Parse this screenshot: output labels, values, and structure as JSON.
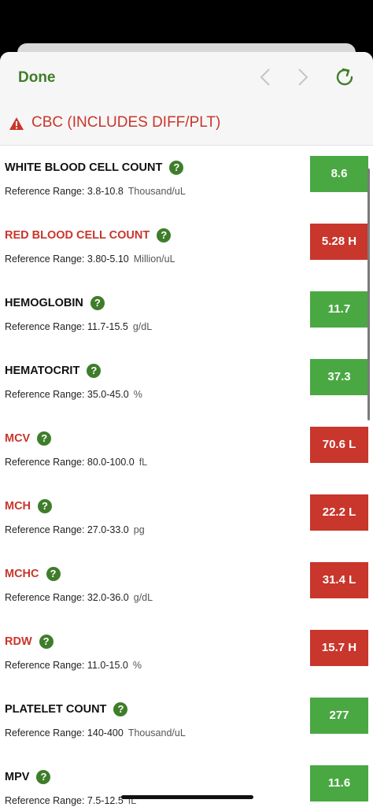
{
  "nav": {
    "done_label": "Done",
    "back_icon": "chevron-left-icon",
    "forward_icon": "chevron-right-icon",
    "reload_icon": "reload-icon"
  },
  "panel": {
    "title": "CBC (INCLUDES DIFF/PLT)",
    "alert_icon": "warning-icon"
  },
  "colors": {
    "normal": "#4aa843",
    "abnormal": "#c8362c",
    "accent": "#3f7d2a"
  },
  "results": [
    {
      "name": "WHITE BLOOD CELL COUNT",
      "range_label": "Reference Range: 3.8-10.8",
      "unit": "Thousand/uL",
      "value": "8.6",
      "status": "normal"
    },
    {
      "name": "RED BLOOD CELL COUNT",
      "range_label": "Reference Range: 3.80-5.10",
      "unit": "Million/uL",
      "value": "5.28 H",
      "status": "abnormal"
    },
    {
      "name": "HEMOGLOBIN",
      "range_label": "Reference Range: 11.7-15.5",
      "unit": "g/dL",
      "value": "11.7",
      "status": "normal"
    },
    {
      "name": "HEMATOCRIT",
      "range_label": "Reference Range: 35.0-45.0",
      "unit": "%",
      "value": "37.3",
      "status": "normal"
    },
    {
      "name": "MCV",
      "range_label": "Reference Range: 80.0-100.0",
      "unit": "fL",
      "value": "70.6 L",
      "status": "abnormal"
    },
    {
      "name": "MCH",
      "range_label": "Reference Range: 27.0-33.0",
      "unit": "pg",
      "value": "22.2 L",
      "status": "abnormal"
    },
    {
      "name": "MCHC",
      "range_label": "Reference Range: 32.0-36.0",
      "unit": "g/dL",
      "value": "31.4 L",
      "status": "abnormal"
    },
    {
      "name": "RDW",
      "range_label": "Reference Range: 11.0-15.0",
      "unit": "%",
      "value": "15.7 H",
      "status": "abnormal"
    },
    {
      "name": "PLATELET COUNT",
      "range_label": "Reference Range: 140-400",
      "unit": "Thousand/uL",
      "value": "277",
      "status": "normal"
    },
    {
      "name": "MPV",
      "range_label": "Reference Range: 7.5-12.5",
      "unit": "fL",
      "value": "11.6",
      "status": "normal"
    }
  ]
}
